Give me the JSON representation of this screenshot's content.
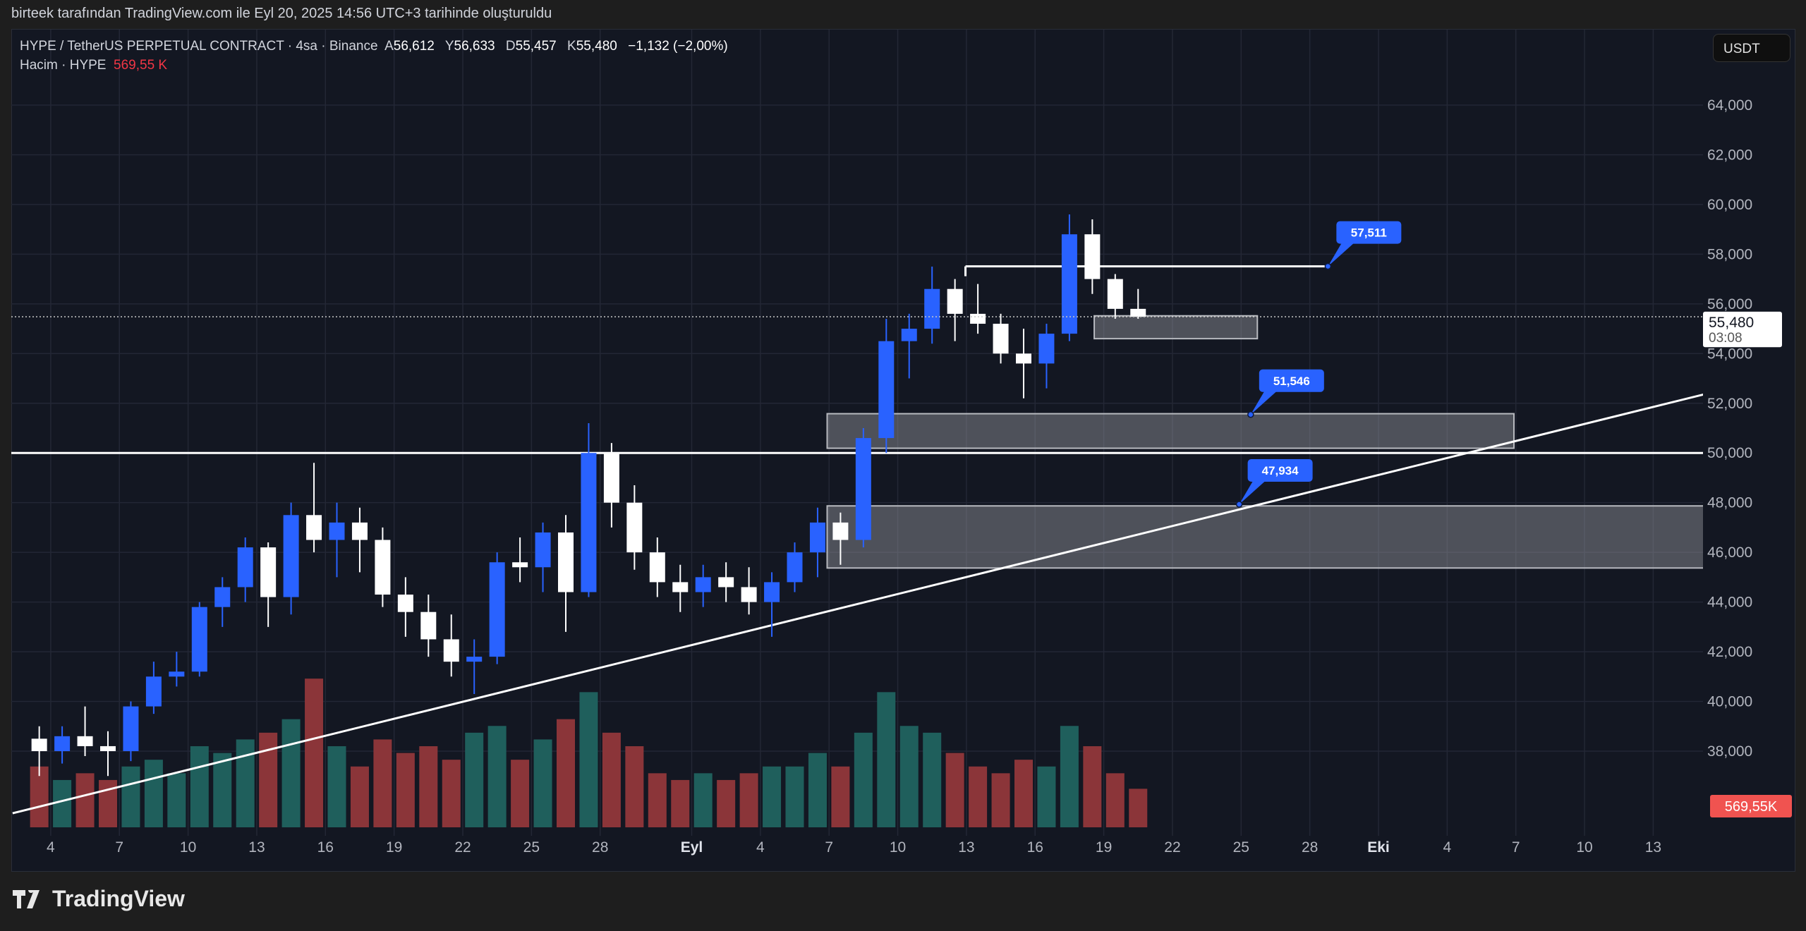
{
  "caption": "birteek tarafından TradingView.com ile Eyl 20, 2025 14:56 UTC+3 tarihinde oluşturuldu",
  "legend": {
    "symbol": "HYPE / TetherUS PERPETUAL CONTRACT · 4sa · Binance",
    "open_label": "A",
    "open": "56,612",
    "high_label": "Y",
    "high": "56,633",
    "low_label": "D",
    "low": "55,457",
    "close_label": "K",
    "close": "55,480",
    "change": "−1,132 (−2,00%)",
    "volume_label": "Hacim · HYPE",
    "volume_value": "569,55 K"
  },
  "currency": "USDT",
  "brand": "TradingView",
  "colors": {
    "up": "#2962ff",
    "down": "#ffffff",
    "vol_up": "#1f5f5c",
    "vol_down": "#8b3539",
    "callout": "#2962ff",
    "vol_badge": "#f05350"
  },
  "chart_data": {
    "type": "candlestick",
    "interval": "4sa",
    "ylim": [
      36500,
      65500
    ],
    "y_ticks": [
      "64,000",
      "62,000",
      "60,000",
      "58,000",
      "56,000",
      "54,000",
      "52,000",
      "50,000",
      "48,000",
      "46,000",
      "44,000",
      "42,000",
      "40,000",
      "38,000"
    ],
    "x_ticks": [
      {
        "date": "2025-08-04",
        "label": "4"
      },
      {
        "date": "2025-08-07",
        "label": "7"
      },
      {
        "date": "2025-08-10",
        "label": "10"
      },
      {
        "date": "2025-08-13",
        "label": "13"
      },
      {
        "date": "2025-08-16",
        "label": "16"
      },
      {
        "date": "2025-08-19",
        "label": "19"
      },
      {
        "date": "2025-08-22",
        "label": "22"
      },
      {
        "date": "2025-08-25",
        "label": "25"
      },
      {
        "date": "2025-08-28",
        "label": "28"
      },
      {
        "date": "2025-09-01",
        "label": "Eyl"
      },
      {
        "date": "2025-09-04",
        "label": "4"
      },
      {
        "date": "2025-09-07",
        "label": "7"
      },
      {
        "date": "2025-09-10",
        "label": "10"
      },
      {
        "date": "2025-09-13",
        "label": "13"
      },
      {
        "date": "2025-09-16",
        "label": "16"
      },
      {
        "date": "2025-09-19",
        "label": "19"
      },
      {
        "date": "2025-09-22",
        "label": "22"
      },
      {
        "date": "2025-09-25",
        "label": "25"
      },
      {
        "date": "2025-09-28",
        "label": "28"
      },
      {
        "date": "2025-10-01",
        "label": "Eki"
      },
      {
        "date": "2025-10-04",
        "label": "4"
      },
      {
        "date": "2025-10-07",
        "label": "7"
      },
      {
        "date": "2025-10-10",
        "label": "10"
      },
      {
        "date": "2025-10-13",
        "label": "13"
      }
    ],
    "candles_daily_approx": [
      [
        "2025-08-03",
        38500,
        39000,
        37000,
        38000,
        900
      ],
      [
        "2025-08-04",
        38000,
        39000,
        37500,
        38600,
        700
      ],
      [
        "2025-08-05",
        38600,
        39800,
        37800,
        38200,
        800
      ],
      [
        "2025-08-06",
        38200,
        38800,
        37000,
        38000,
        700
      ],
      [
        "2025-08-07",
        38000,
        40000,
        37600,
        39800,
        900
      ],
      [
        "2025-08-08",
        39800,
        41600,
        39500,
        41000,
        1000
      ],
      [
        "2025-08-09",
        41000,
        42000,
        40600,
        41200,
        800
      ],
      [
        "2025-08-10",
        41200,
        44000,
        41000,
        43800,
        1200
      ],
      [
        "2025-08-11",
        43800,
        45000,
        43000,
        44600,
        1100
      ],
      [
        "2025-08-12",
        44600,
        46600,
        44000,
        46200,
        1300
      ],
      [
        "2025-08-13",
        46200,
        46400,
        43000,
        44200,
        1400
      ],
      [
        "2025-08-14",
        44200,
        48000,
        43500,
        47500,
        1600
      ],
      [
        "2025-08-15",
        47500,
        49600,
        46000,
        46500,
        2200
      ],
      [
        "2025-08-16",
        46500,
        48000,
        45000,
        47200,
        1200
      ],
      [
        "2025-08-17",
        47200,
        47800,
        45200,
        46500,
        900
      ],
      [
        "2025-08-18",
        46500,
        47000,
        43800,
        44300,
        1300
      ],
      [
        "2025-08-19",
        44300,
        45000,
        42600,
        43600,
        1100
      ],
      [
        "2025-08-20",
        43600,
        44300,
        41800,
        42500,
        1200
      ],
      [
        "2025-08-21",
        42500,
        43500,
        41000,
        41600,
        1000
      ],
      [
        "2025-08-22",
        41600,
        42500,
        40300,
        41800,
        1400
      ],
      [
        "2025-08-23",
        41800,
        46000,
        41500,
        45600,
        1500
      ],
      [
        "2025-08-24",
        45600,
        46600,
        44800,
        45400,
        1000
      ],
      [
        "2025-08-25",
        45400,
        47200,
        44400,
        46800,
        1300
      ],
      [
        "2025-08-26",
        46800,
        47500,
        42800,
        44400,
        1600
      ],
      [
        "2025-08-27",
        44400,
        51200,
        44200,
        50000,
        2000
      ],
      [
        "2025-08-28",
        50000,
        50400,
        47000,
        48000,
        1400
      ],
      [
        "2025-08-29",
        48000,
        48700,
        45300,
        46000,
        1200
      ],
      [
        "2025-08-30",
        46000,
        46600,
        44200,
        44800,
        800
      ],
      [
        "2025-08-31",
        44800,
        45500,
        43600,
        44400,
        700
      ],
      [
        "2025-09-01",
        44400,
        45500,
        43800,
        45000,
        800
      ],
      [
        "2025-09-02",
        45000,
        45600,
        44000,
        44600,
        700
      ],
      [
        "2025-09-03",
        44600,
        45400,
        43500,
        44000,
        800
      ],
      [
        "2025-09-04",
        44000,
        45200,
        42600,
        44800,
        900
      ],
      [
        "2025-09-05",
        44800,
        46400,
        44400,
        46000,
        900
      ],
      [
        "2025-09-06",
        46000,
        47800,
        45000,
        47200,
        1100
      ],
      [
        "2025-09-07",
        47200,
        47600,
        45500,
        46500,
        900
      ],
      [
        "2025-09-08",
        46500,
        51000,
        46200,
        50600,
        1400
      ],
      [
        "2025-09-09",
        50600,
        55400,
        50000,
        54500,
        2000
      ],
      [
        "2025-09-10",
        54500,
        55600,
        53000,
        55000,
        1500
      ],
      [
        "2025-09-11",
        55000,
        57500,
        54400,
        56600,
        1400
      ],
      [
        "2025-09-12",
        56600,
        57000,
        54500,
        55600,
        1100
      ],
      [
        "2025-09-13",
        55600,
        56800,
        54800,
        55200,
        900
      ],
      [
        "2025-09-14",
        55200,
        55600,
        53600,
        54000,
        800
      ],
      [
        "2025-09-15",
        54000,
        55000,
        52200,
        53600,
        1000
      ],
      [
        "2025-09-16",
        53600,
        55200,
        52600,
        54800,
        900
      ],
      [
        "2025-09-17",
        54800,
        59600,
        54500,
        58800,
        1500
      ],
      [
        "2025-09-18",
        58800,
        59400,
        56400,
        57000,
        1200
      ],
      [
        "2025-09-19",
        57000,
        57200,
        55400,
        55800,
        800
      ],
      [
        "2025-09-20",
        55800,
        56600,
        55400,
        55480,
        570
      ]
    ],
    "last_price": "55,480",
    "countdown": "03:08",
    "volume_last": "569,55K"
  },
  "drawings": {
    "horizontal_line": 50000,
    "trendline": [
      [
        "2025-08-02T08:00",
        35500
      ],
      [
        "2025-10-16T12:00",
        52650
      ]
    ],
    "boxes": [
      {
        "from": "2025-09-06T22:00",
        "to": "2025-10-06T22:00",
        "top": 51580,
        "bottom": 50190
      },
      {
        "from": "2025-09-06T22:00",
        "to": "2025-10-16T12:00",
        "top": 47870,
        "bottom": 45370
      },
      {
        "from": "2025-09-18T14:00",
        "to": "2025-09-25T17:00",
        "top": 55520,
        "bottom": 54600
      }
    ],
    "level_line": {
      "from": "2025-09-12T23:00",
      "to": "2025-09-28T19:00",
      "price": 57511
    },
    "callouts": [
      {
        "date": "2025-09-28T19:00",
        "price": 57511,
        "label": "57,511"
      },
      {
        "date": "2025-09-25T10:00",
        "price": 51546,
        "label": "51,546"
      },
      {
        "date": "2025-09-24T22:00",
        "price": 47934,
        "label": "47,934"
      }
    ]
  }
}
